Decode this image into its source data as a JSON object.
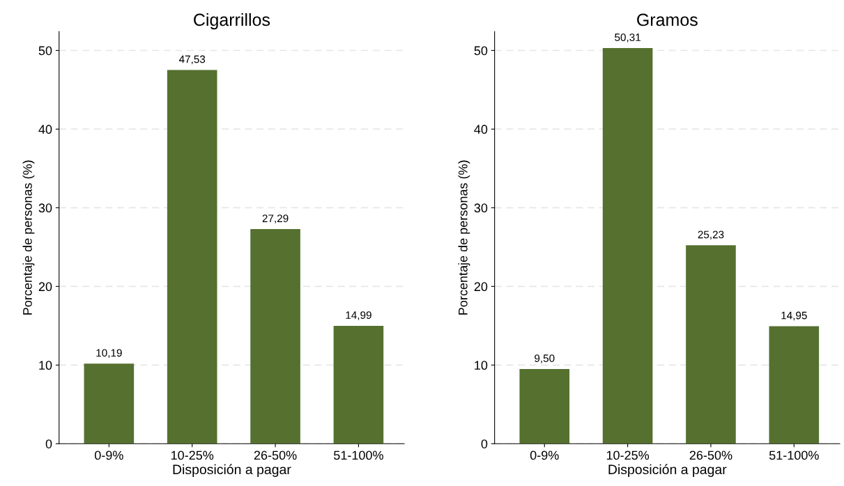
{
  "chart_data": [
    {
      "type": "bar",
      "title": "Cigarrillos",
      "xlabel": "Disposición a pagar",
      "ylabel": "Porcentaje de personas (%)",
      "categories": [
        "0-9%",
        "10-25%",
        "26-50%",
        "51-100%"
      ],
      "values": [
        10.19,
        47.53,
        27.29,
        14.99
      ],
      "value_labels": [
        "10,19",
        "47,53",
        "27,29",
        "14,99"
      ],
      "color": "#55702f",
      "ylim": [
        0,
        52.4
      ],
      "yticks": [
        0,
        10,
        20,
        30,
        40,
        50
      ],
      "grid": "y"
    },
    {
      "type": "bar",
      "title": "Gramos",
      "xlabel": "Disposición a pagar",
      "ylabel": "Porcentaje de personas (%)",
      "categories": [
        "0-9%",
        "10-25%",
        "26-50%",
        "51-100%"
      ],
      "values": [
        9.5,
        50.31,
        25.23,
        14.95
      ],
      "value_labels": [
        "9,50",
        "50,31",
        "25,23",
        "14,95"
      ],
      "color": "#55702f",
      "ylim": [
        0,
        52.4
      ],
      "yticks": [
        0,
        10,
        20,
        30,
        40,
        50
      ],
      "grid": "y"
    }
  ]
}
